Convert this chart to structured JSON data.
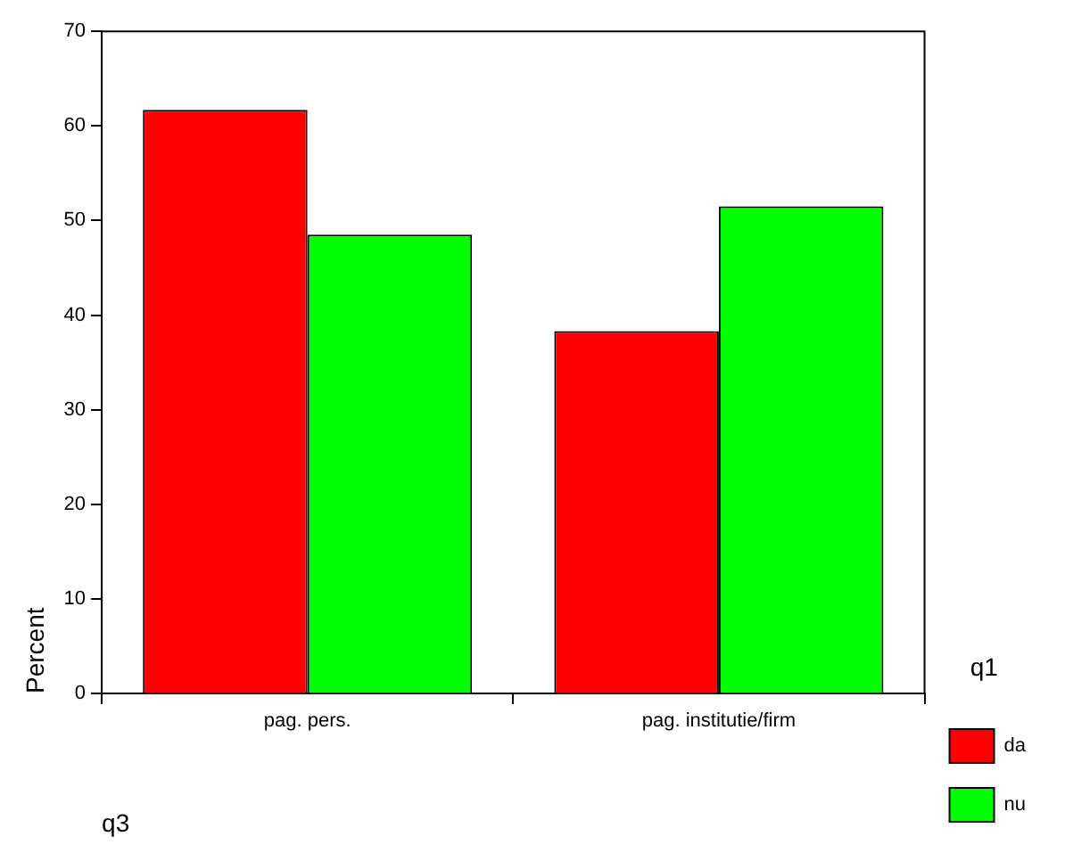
{
  "chart_data": {
    "type": "bar",
    "xlabel": "q3",
    "ylabel": "Percent",
    "legend_title": "q1",
    "categories": [
      "pag. pers.",
      "pag. institutie/firm"
    ],
    "series": [
      {
        "name": "da",
        "color": "#ff0000",
        "values": [
          61.7,
          38.3
        ]
      },
      {
        "name": "nu",
        "color": "#00ff00",
        "values": [
          48.5,
          51.5
        ]
      }
    ],
    "ylim": [
      0,
      70
    ],
    "yticks": [
      0,
      10,
      20,
      30,
      40,
      50,
      60,
      70
    ],
    "grid": false,
    "legend": "right"
  }
}
